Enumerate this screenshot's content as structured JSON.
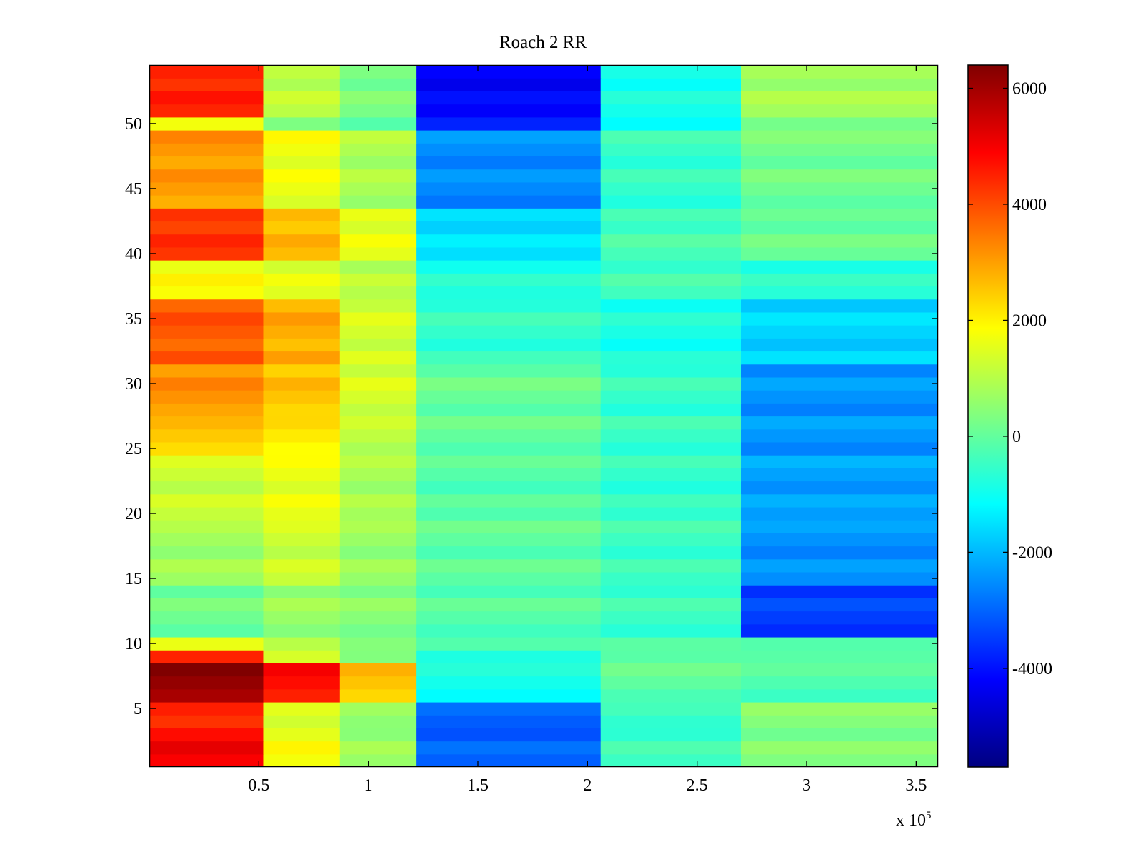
{
  "chart_data": {
    "type": "heatmap",
    "title": "Roach 2 RR",
    "xlabel": "",
    "ylabel": "",
    "x_multiplier_label": {
      "base": "x 10",
      "exponent": "5"
    },
    "xlim": [
      0,
      3.6
    ],
    "ylim": [
      0.5,
      54.5
    ],
    "x_ticks": [
      0.5,
      1,
      1.5,
      2,
      2.5,
      3,
      3.5
    ],
    "x_tick_labels": [
      "0.5",
      "1",
      "1.5",
      "2",
      "2.5",
      "3",
      "3.5"
    ],
    "y_ticks": [
      5,
      10,
      15,
      20,
      25,
      30,
      35,
      40,
      45,
      50
    ],
    "y_tick_labels": [
      "5",
      "10",
      "15",
      "20",
      "25",
      "30",
      "35",
      "40",
      "45",
      "50"
    ],
    "colormap": "jet",
    "clim": [
      -5700,
      6400
    ],
    "colorbar_ticks": [
      6000,
      4000,
      2000,
      0,
      -2000,
      -4000
    ],
    "colorbar_tick_labels": [
      "6000",
      "4000",
      "2000",
      "0",
      "-2000",
      "-4000"
    ],
    "row_count": 54,
    "column_segments_x": [
      0,
      0.52,
      0.87,
      1.22,
      2.06,
      2.7,
      3.6
    ],
    "row_groups": [
      {
        "rows": [
          1,
          3
        ],
        "values": [
          5000,
          1800,
          700,
          -3000,
          -400,
          400
        ]
      },
      {
        "rows": [
          4,
          5
        ],
        "values": [
          4300,
          1300,
          500,
          -3100,
          -600,
          400
        ]
      },
      {
        "rows": [
          6,
          8
        ],
        "values": [
          6100,
          4700,
          2500,
          -1000,
          -100,
          -300
        ]
      },
      {
        "rows": [
          9,
          9
        ],
        "values": [
          4600,
          1500,
          500,
          -700,
          0,
          0
        ]
      },
      {
        "rows": [
          10,
          10
        ],
        "values": [
          1500,
          900,
          300,
          -300,
          -200,
          -300
        ]
      },
      {
        "rows": [
          11,
          14
        ],
        "values": [
          200,
          700,
          500,
          -100,
          -400,
          -3400
        ]
      },
      {
        "rows": [
          15,
          19
        ],
        "values": [
          700,
          1200,
          600,
          -100,
          -500,
          -2500
        ]
      },
      {
        "rows": [
          20,
          24
        ],
        "values": [
          1300,
          1700,
          900,
          -100,
          -500,
          -2200
        ]
      },
      {
        "rows": [
          25,
          27
        ],
        "values": [
          2500,
          2100,
          1100,
          0,
          -500,
          -2400
        ]
      },
      {
        "rows": [
          28,
          31
        ],
        "values": [
          3100,
          2500,
          1300,
          0,
          -600,
          -2500
        ]
      },
      {
        "rows": [
          32,
          36
        ],
        "values": [
          3900,
          2900,
          1400,
          -500,
          -800,
          -1600
        ]
      },
      {
        "rows": [
          37,
          39
        ],
        "values": [
          1800,
          1500,
          1000,
          -800,
          -400,
          -700
        ]
      },
      {
        "rows": [
          40,
          43
        ],
        "values": [
          4200,
          2600,
          1500,
          -1600,
          -400,
          0
        ]
      },
      {
        "rows": [
          44,
          49
        ],
        "values": [
          3100,
          1700,
          900,
          -2500,
          -500,
          200
        ]
      },
      {
        "rows": [
          50,
          50
        ],
        "values": [
          1900,
          500,
          0,
          -3600,
          -1000,
          400
        ]
      },
      {
        "rows": [
          51,
          54
        ],
        "values": [
          4400,
          1000,
          200,
          -4300,
          -1000,
          700
        ]
      }
    ]
  }
}
